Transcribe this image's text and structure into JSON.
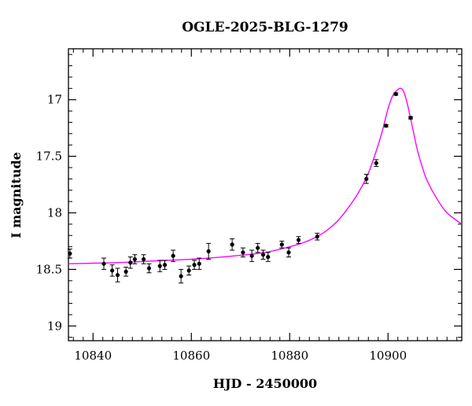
{
  "chart_data": {
    "type": "scatter",
    "title": "OGLE-2025-BLG-1279",
    "xlabel": "HJD - 2450000",
    "ylabel": "I magnitude",
    "xlim": [
      10835,
      10915
    ],
    "ylim": [
      19.13,
      16.55
    ],
    "y_inverted": true,
    "grid": false,
    "x_ticks_major": [
      10840,
      10860,
      10880,
      10900
    ],
    "x_ticks_minor_step": 2,
    "y_ticks_major": [
      17,
      17.5,
      18,
      18.5,
      19
    ],
    "y_ticks_minor_step": 0.1,
    "x_tick_labels": [
      "10840",
      "10860",
      "10880",
      "10900"
    ],
    "y_tick_labels": [
      "17",
      "17.5",
      "18",
      "18.5",
      "19"
    ],
    "series": [
      {
        "kind": "data",
        "color": "#000000",
        "points": [
          {
            "x": 10835.3,
            "y": 18.36,
            "err": 0.04
          },
          {
            "x": 10842.2,
            "y": 18.45,
            "err": 0.05
          },
          {
            "x": 10843.9,
            "y": 18.51,
            "err": 0.05
          },
          {
            "x": 10845.0,
            "y": 18.55,
            "err": 0.06
          },
          {
            "x": 10846.7,
            "y": 18.52,
            "err": 0.04
          },
          {
            "x": 10847.6,
            "y": 18.44,
            "err": 0.05
          },
          {
            "x": 10848.5,
            "y": 18.41,
            "err": 0.04
          },
          {
            "x": 10850.3,
            "y": 18.41,
            "err": 0.04
          },
          {
            "x": 10851.4,
            "y": 18.49,
            "err": 0.04
          },
          {
            "x": 10853.6,
            "y": 18.47,
            "err": 0.05
          },
          {
            "x": 10854.6,
            "y": 18.46,
            "err": 0.04
          },
          {
            "x": 10856.3,
            "y": 18.38,
            "err": 0.05
          },
          {
            "x": 10857.9,
            "y": 18.56,
            "err": 0.06
          },
          {
            "x": 10859.5,
            "y": 18.51,
            "err": 0.04
          },
          {
            "x": 10860.6,
            "y": 18.46,
            "err": 0.04
          },
          {
            "x": 10861.6,
            "y": 18.45,
            "err": 0.05
          },
          {
            "x": 10863.5,
            "y": 18.34,
            "err": 0.07
          },
          {
            "x": 10868.3,
            "y": 18.28,
            "err": 0.05
          },
          {
            "x": 10870.5,
            "y": 18.35,
            "err": 0.04
          },
          {
            "x": 10872.3,
            "y": 18.38,
            "err": 0.05
          },
          {
            "x": 10873.5,
            "y": 18.31,
            "err": 0.04
          },
          {
            "x": 10874.6,
            "y": 18.37,
            "err": 0.04
          },
          {
            "x": 10875.6,
            "y": 18.39,
            "err": 0.04
          },
          {
            "x": 10878.4,
            "y": 18.28,
            "err": 0.03
          },
          {
            "x": 10879.8,
            "y": 18.35,
            "err": 0.04
          },
          {
            "x": 10881.8,
            "y": 18.24,
            "err": 0.03
          },
          {
            "x": 10885.6,
            "y": 18.21,
            "err": 0.03
          },
          {
            "x": 10895.6,
            "y": 17.7,
            "err": 0.04
          },
          {
            "x": 10897.6,
            "y": 17.56,
            "err": 0.03
          },
          {
            "x": 10899.6,
            "y": 17.23,
            "err": 0.01
          },
          {
            "x": 10901.6,
            "y": 16.95,
            "err": 0.01
          },
          {
            "x": 10904.6,
            "y": 17.16,
            "err": 0.01
          }
        ]
      },
      {
        "kind": "model",
        "color": "#ff00ff",
        "x": [
          10835,
          10840,
          10845,
          10850,
          10855,
          10860,
          10865,
          10870,
          10875,
          10880,
          10883,
          10886,
          10888,
          10890,
          10892,
          10894,
          10896,
          10898,
          10899,
          10900,
          10901,
          10902,
          10902.6,
          10903.2,
          10904,
          10905,
          10906,
          10907,
          10908,
          10910,
          10912,
          10915
        ],
        "y": [
          18.45,
          18.445,
          18.44,
          18.43,
          18.42,
          18.41,
          18.395,
          18.375,
          18.35,
          18.3,
          18.26,
          18.2,
          18.14,
          18.06,
          17.95,
          17.82,
          17.65,
          17.4,
          17.25,
          17.08,
          16.96,
          16.91,
          16.9,
          16.93,
          17.05,
          17.25,
          17.45,
          17.6,
          17.72,
          17.88,
          18.0,
          18.1
        ]
      }
    ]
  }
}
